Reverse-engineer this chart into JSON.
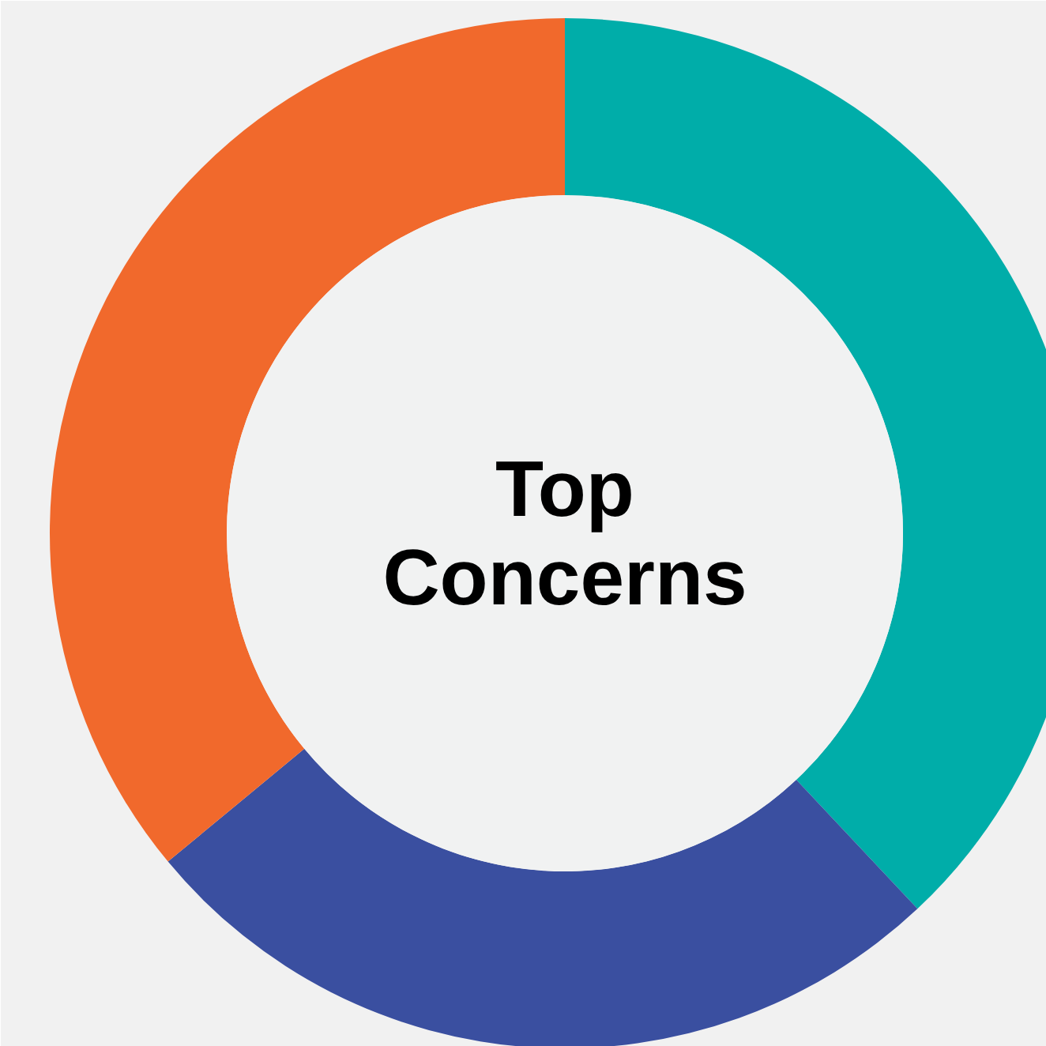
{
  "chart_data": {
    "type": "donut",
    "title": "Top Concerns",
    "categories": [
      null,
      null,
      null
    ],
    "values": [
      38,
      26,
      36
    ],
    "colors": [
      "#00ada9",
      "#3a4fa0",
      "#f1692c"
    ]
  }
}
